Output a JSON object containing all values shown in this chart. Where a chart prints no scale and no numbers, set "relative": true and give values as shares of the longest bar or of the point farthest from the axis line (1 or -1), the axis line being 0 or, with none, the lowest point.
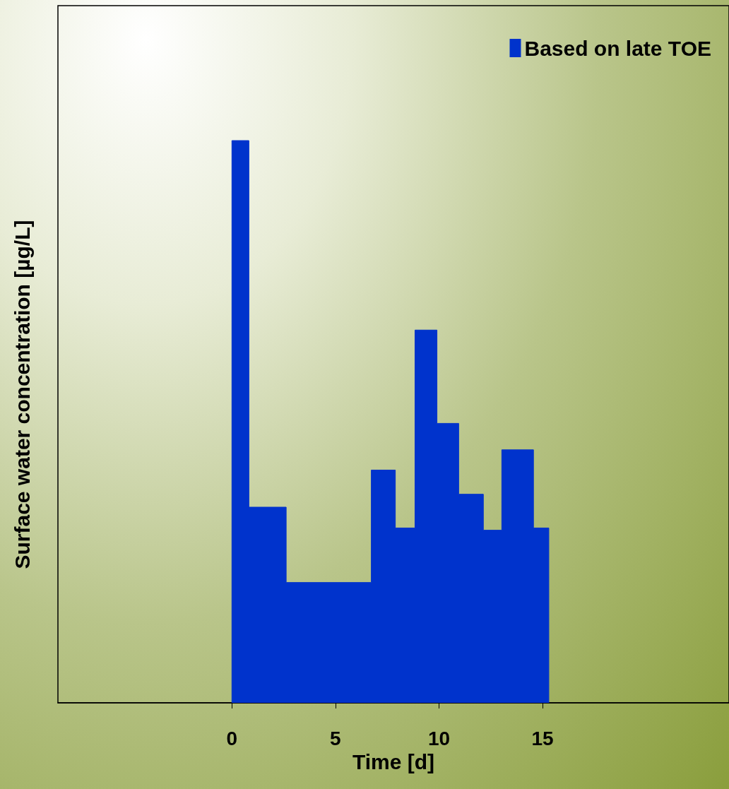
{
  "chart_data": {
    "type": "area",
    "relative": true,
    "xlabel": "Time [d]",
    "ylabel": "Surface water concentration [µg/L]",
    "series": [
      {
        "name": "Based on late TOE",
        "color": "#0033cc",
        "x": [
          0,
          0,
          0.82,
          0.82,
          2.62,
          2.62,
          6.73,
          6.73,
          7.89,
          7.89,
          8.84,
          8.84,
          9.9,
          9.9,
          10.95,
          10.95,
          12.14,
          12.14,
          13.03,
          13.03,
          14.56,
          14.56,
          15.3,
          15.3
        ],
        "values": [
          0,
          1,
          1,
          0.348,
          0.348,
          0.214,
          0.214,
          0.414,
          0.414,
          0.311,
          0.311,
          0.663,
          0.663,
          0.497,
          0.497,
          0.371,
          0.371,
          0.307,
          0.307,
          0.45,
          0.45,
          0.311,
          0.311,
          0
        ]
      }
    ],
    "xlim": [
      -8.4,
      24
    ],
    "xticks": [
      0,
      5,
      10,
      15
    ],
    "grid": false,
    "legend": "top right",
    "marker": "none"
  }
}
